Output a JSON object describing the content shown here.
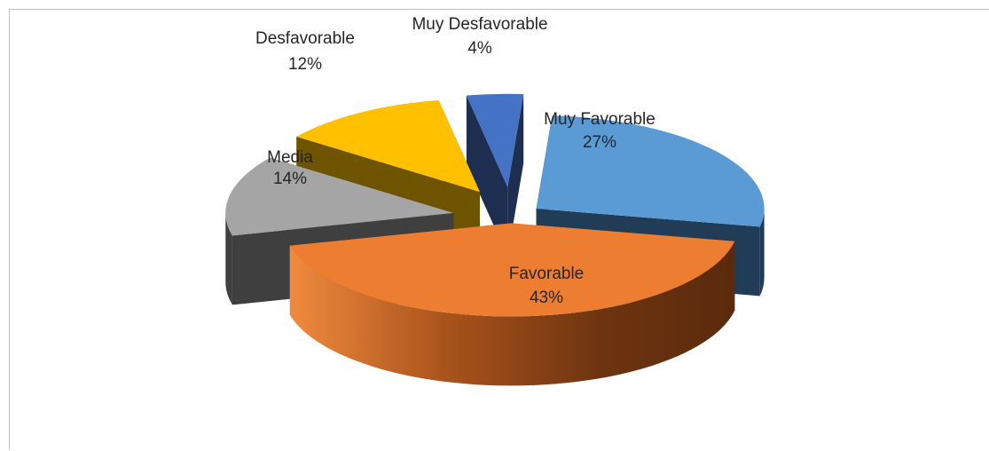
{
  "chart_data": {
    "type": "pie",
    "title": "",
    "three_d": true,
    "exploded": true,
    "slices": [
      {
        "label": "Muy Favorable",
        "value": 27,
        "pct_label": "27%",
        "color": "#5b9bd5"
      },
      {
        "label": "Favorable",
        "value": 43,
        "pct_label": "43%",
        "color": "#ed7d31"
      },
      {
        "label": "Media",
        "value": 14,
        "pct_label": "14%",
        "color": "#a5a5a5"
      },
      {
        "label": "Desfavorable",
        "value": 12,
        "pct_label": "12%",
        "color": "#ffc000"
      },
      {
        "label": "Muy Desfavorable",
        "value": 4,
        "pct_label": "4%",
        "color": "#4472c4"
      }
    ]
  }
}
